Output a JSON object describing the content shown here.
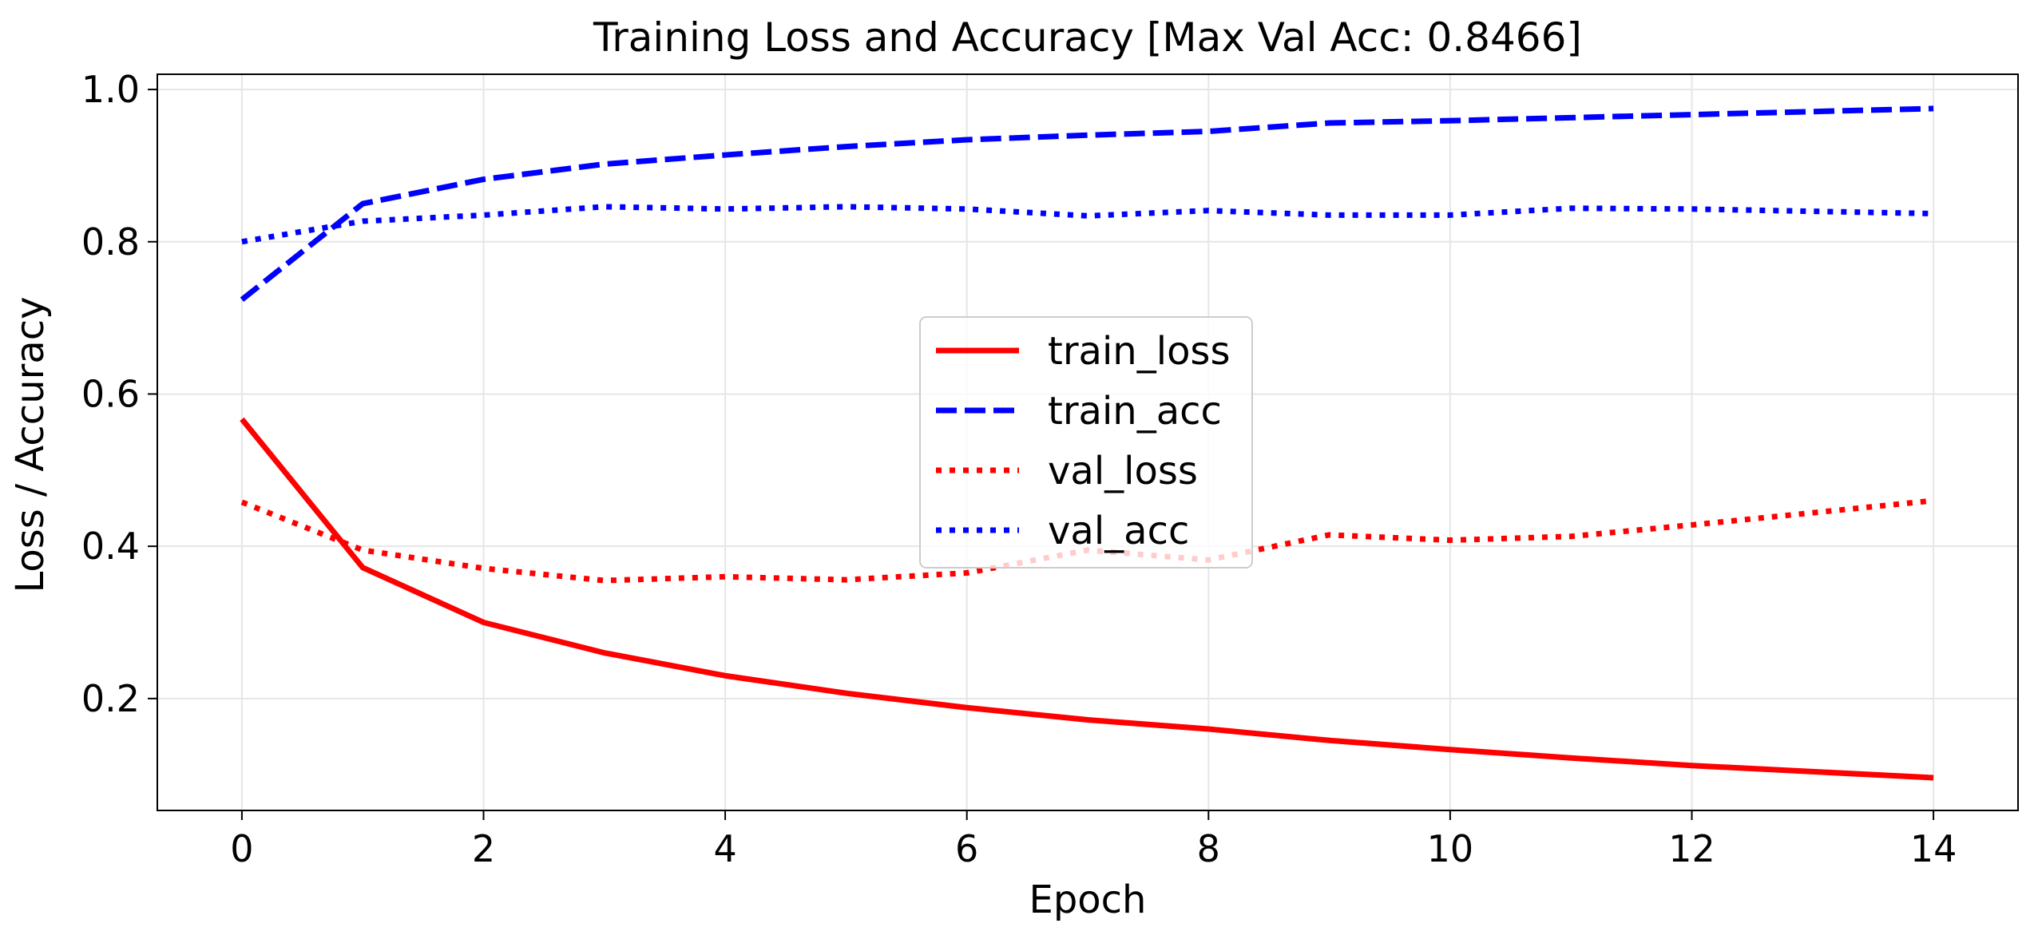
{
  "chart_data": {
    "type": "line",
    "title": "Training Loss and Accuracy [Max Val Acc: 0.8466]",
    "xlabel": "Epoch",
    "ylabel": "Loss / Accuracy",
    "xlim": [
      -0.7,
      14.7
    ],
    "ylim": [
      0.053,
      1.02
    ],
    "xticks": [
      0,
      2,
      4,
      6,
      8,
      10,
      12,
      14
    ],
    "xtick_labels": [
      "0",
      "2",
      "4",
      "6",
      "8",
      "10",
      "12",
      "14"
    ],
    "yticks": [
      0.2,
      0.4,
      0.6,
      0.8,
      1.0
    ],
    "ytick_labels": [
      "0.2",
      "0.4",
      "0.6",
      "0.8",
      "1.0"
    ],
    "grid": true,
    "legend_position": "center",
    "x": [
      0,
      1,
      2,
      3,
      4,
      5,
      6,
      7,
      8,
      9,
      10,
      11,
      12,
      13,
      14
    ],
    "series": [
      {
        "name": "train_loss",
        "color": "#ff0000",
        "style": "solid",
        "values": [
          0.567,
          0.372,
          0.3,
          0.26,
          0.23,
          0.207,
          0.188,
          0.172,
          0.16,
          0.145,
          0.133,
          0.122,
          0.112,
          0.104,
          0.096
        ]
      },
      {
        "name": "train_acc",
        "color": "#0000ff",
        "style": "dashed",
        "values": [
          0.724,
          0.85,
          0.882,
          0.902,
          0.914,
          0.925,
          0.934,
          0.94,
          0.945,
          0.956,
          0.959,
          0.963,
          0.967,
          0.971,
          0.975
        ]
      },
      {
        "name": "val_loss",
        "color": "#ff0000",
        "style": "dotted",
        "values": [
          0.458,
          0.395,
          0.371,
          0.355,
          0.36,
          0.356,
          0.365,
          0.395,
          0.382,
          0.415,
          0.408,
          0.413,
          0.428,
          0.444,
          0.46
        ]
      },
      {
        "name": "val_acc",
        "color": "#0000ff",
        "style": "dotted",
        "values": [
          0.8,
          0.827,
          0.835,
          0.846,
          0.843,
          0.846,
          0.843,
          0.834,
          0.841,
          0.835,
          0.835,
          0.844,
          0.843,
          0.84,
          0.837
        ]
      }
    ]
  }
}
